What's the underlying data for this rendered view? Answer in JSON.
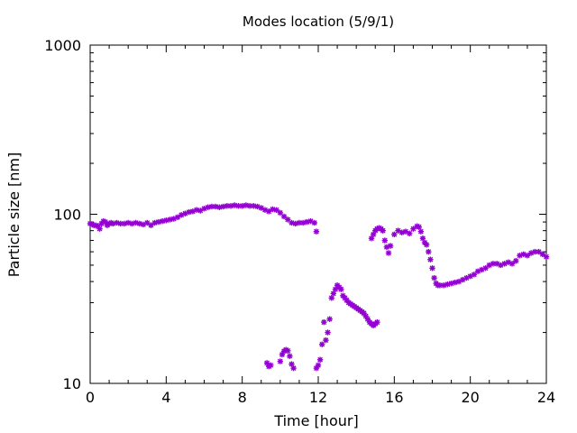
{
  "chart_data": {
    "type": "scatter",
    "title": "Modes location (5/9/1)",
    "xlabel": "Time [hour]",
    "ylabel": "Particle size [nm]",
    "xlim": [
      0,
      24
    ],
    "ylim": [
      10,
      1000
    ],
    "y_scale": "log",
    "grid": false,
    "legend": "none",
    "marker_color": "#9400d3",
    "x_ticks": [
      {
        "value": 0,
        "label": "0"
      },
      {
        "value": 4,
        "label": "4"
      },
      {
        "value": 8,
        "label": "8"
      },
      {
        "value": 12,
        "label": "12"
      },
      {
        "value": 16,
        "label": "16"
      },
      {
        "value": 20,
        "label": "20"
      },
      {
        "value": 24,
        "label": "24"
      }
    ],
    "y_ticks": [
      {
        "value": 10,
        "label": "10"
      },
      {
        "value": 100,
        "label": "100"
      },
      {
        "value": 1000,
        "label": "1000"
      }
    ],
    "series": [
      {
        "x": [
          0,
          0.1,
          0.2,
          0.3,
          0.4,
          0.5,
          0.6,
          0.7,
          0.8,
          0.9,
          1.0,
          1.1,
          1.2,
          1.4,
          1.6,
          1.8,
          2.0,
          2.2,
          2.4,
          2.6,
          2.8,
          3.0,
          3.2,
          3.4,
          3.6,
          3.8,
          4.0,
          4.2,
          4.4,
          4.6,
          4.8,
          5.0,
          5.2,
          5.4,
          5.6,
          5.8,
          6.0,
          6.2,
          6.4,
          6.6,
          6.8,
          7.0,
          7.2,
          7.4,
          7.6,
          7.8,
          8.0,
          8.2,
          8.4,
          8.6,
          8.8,
          9.0,
          9.2,
          9.4,
          9.6,
          9.8,
          10.0,
          10.2,
          10.4,
          10.6,
          10.8,
          11.0,
          11.2,
          11.4,
          11.6,
          11.8,
          11.9
        ],
        "y": [
          88,
          87,
          86,
          86,
          85,
          82,
          88,
          91,
          90,
          86,
          88,
          89,
          88,
          89,
          88,
          88,
          89,
          88,
          89,
          88,
          87,
          89,
          86,
          89,
          90,
          91,
          92,
          93,
          94,
          96,
          99,
          101,
          103,
          104,
          106,
          105,
          108,
          110,
          111,
          111,
          110,
          111,
          112,
          112,
          113,
          112,
          112,
          113,
          112,
          112,
          111,
          109,
          106,
          104,
          107,
          106,
          102,
          97,
          93,
          89,
          88,
          89,
          89,
          90,
          91,
          89,
          79
        ]
      },
      {
        "x": [
          9.3,
          9.4,
          9.5,
          10.0,
          10.1,
          10.2,
          10.3,
          10.4,
          10.5,
          10.6,
          10.7
        ],
        "y": [
          13.2,
          12.6,
          12.8,
          13.5,
          14.8,
          15.5,
          15.8,
          15.6,
          14.5,
          13.0,
          12.3
        ]
      },
      {
        "x": [
          11.9,
          12.0,
          12.1,
          12.2,
          12.3,
          12.4,
          12.5,
          12.6,
          12.7,
          12.8,
          12.9,
          13.0,
          13.1,
          13.2,
          13.3,
          13.4,
          13.5,
          13.6,
          13.7,
          13.8,
          13.9,
          14.0,
          14.1,
          14.2,
          14.3,
          14.4,
          14.5,
          14.6,
          14.7,
          14.8,
          14.9,
          15.0,
          15.1
        ],
        "y": [
          12.3,
          12.8,
          13.8,
          17,
          23,
          18,
          20,
          24,
          32,
          34,
          36,
          38,
          37,
          36,
          33,
          32,
          31,
          30,
          29.5,
          29,
          28.5,
          28,
          27.5,
          27,
          26.5,
          26,
          25,
          24,
          23,
          22.5,
          22,
          22.5,
          23
        ]
      },
      {
        "x": [
          14.8,
          14.9,
          15.0,
          15.1,
          15.2,
          15.3,
          15.4,
          15.5,
          15.6,
          15.7,
          15.8,
          16.0,
          16.2,
          16.4,
          16.6,
          16.8,
          17.0,
          17.2,
          17.3,
          17.4,
          17.5,
          17.6,
          17.7,
          17.8,
          17.9,
          18.0,
          18.1,
          18.2,
          18.3,
          18.4,
          18.6,
          18.8,
          19.0,
          19.2,
          19.4,
          19.6,
          19.8,
          20.0,
          20.2,
          20.4,
          20.6,
          20.8,
          21.0,
          21.2,
          21.4,
          21.6,
          21.8,
          22.0,
          22.2,
          22.4,
          22.6,
          22.8,
          23.0,
          23.2,
          23.4,
          23.6,
          23.8,
          24.0
        ],
        "y": [
          72,
          76,
          80,
          82,
          83,
          82,
          80,
          70,
          64,
          59,
          65,
          76,
          80,
          78,
          79,
          77,
          82,
          85,
          84,
          79,
          72,
          68,
          66,
          60,
          54,
          48,
          42,
          39,
          38,
          38,
          38,
          38.5,
          39,
          39.5,
          40,
          41,
          42,
          43,
          44,
          46,
          47,
          48,
          50,
          51,
          51,
          50,
          51,
          52,
          51,
          53,
          57,
          58,
          57,
          59,
          60,
          60,
          58,
          56
        ]
      }
    ]
  }
}
